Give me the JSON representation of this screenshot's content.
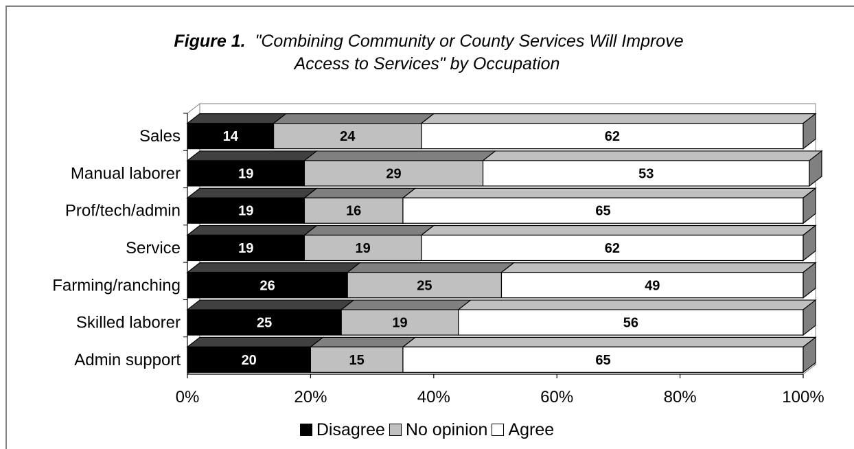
{
  "title": {
    "figure_label": "Figure 1.",
    "line1": "\"Combining Community or County Services Will Improve",
    "line2": "Access to Services\" by Occupation"
  },
  "colors": {
    "disagree": "#000000",
    "no_opinion": "#c0c0c0",
    "agree": "#ffffff"
  },
  "chart_data": {
    "type": "bar",
    "orientation": "horizontal",
    "stacked": "percent",
    "categories": [
      "Sales",
      "Manual laborer",
      "Prof/tech/admin",
      "Service",
      "Farming/ranching",
      "Skilled laborer",
      "Admin support"
    ],
    "series": [
      {
        "name": "Disagree",
        "values": [
          14,
          19,
          19,
          19,
          26,
          25,
          20
        ]
      },
      {
        "name": "No opinion",
        "values": [
          24,
          29,
          16,
          19,
          25,
          19,
          15
        ]
      },
      {
        "name": "Agree",
        "values": [
          62,
          53,
          65,
          62,
          49,
          56,
          65
        ]
      }
    ],
    "x_ticks": [
      "0%",
      "20%",
      "40%",
      "60%",
      "80%",
      "100%"
    ],
    "xlim": [
      0,
      100
    ],
    "grid": false,
    "legend_position": "bottom"
  }
}
